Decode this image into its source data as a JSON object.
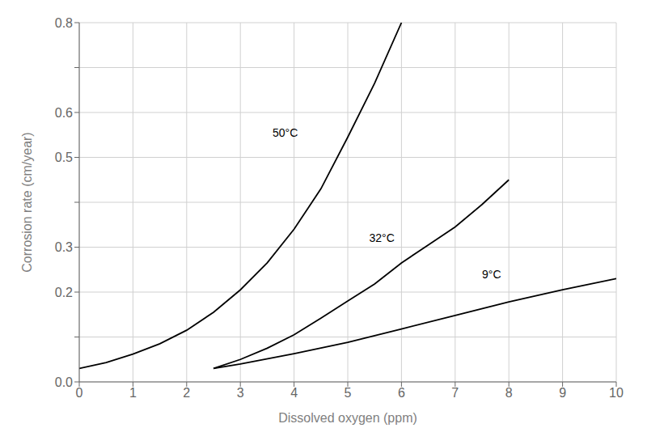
{
  "chart_data": {
    "type": "line",
    "title": "",
    "x_label": "Dissolved oxygen (ppm)",
    "y_label": "Corrosion rate (cm/year)",
    "xlim": [
      0,
      10
    ],
    "ylim": [
      0,
      0.8
    ],
    "xticks": [
      0,
      1,
      2,
      3,
      4,
      5,
      6,
      7,
      8,
      9,
      10
    ],
    "yticks": [
      {
        "value": 0,
        "label": "0.0"
      },
      {
        "value": 0.1,
        "label": ""
      },
      0.2,
      0.3,
      {
        "value": 0.4,
        "label": ""
      },
      0.5,
      0.6,
      {
        "value": 0.7,
        "label": ""
      },
      0.8
    ],
    "grid": true,
    "series": [
      {
        "color": "#000000",
        "x": [
          0,
          0.5,
          1.0,
          1.5,
          2.0,
          2.5,
          3.0,
          3.5,
          4.0,
          4.5,
          5.0,
          5.5,
          6.0
        ],
        "values": [
          0.03,
          0.043,
          0.062,
          0.085,
          0.115,
          0.155,
          0.205,
          0.265,
          0.34,
          0.43,
          0.545,
          0.665,
          0.8
        ]
      },
      {
        "color": "#000000",
        "x": [
          2.5,
          3.0,
          3.5,
          4.0,
          4.5,
          5.0,
          5.5,
          6.0,
          6.5,
          7.0,
          7.5,
          8.0
        ],
        "values": [
          0.03,
          0.05,
          0.075,
          0.105,
          0.142,
          0.18,
          0.218,
          0.265,
          0.305,
          0.345,
          0.395,
          0.45
        ]
      },
      {
        "color": "#000000",
        "x": [
          2.5,
          3.0,
          4.0,
          5.0,
          6.0,
          7.0,
          8.0,
          9.0,
          10.0
        ],
        "values": [
          0.03,
          0.04,
          0.063,
          0.088,
          0.118,
          0.148,
          0.178,
          0.205,
          0.23
        ]
      }
    ],
    "annotations": [
      {
        "text": "50°C",
        "x": 3.6,
        "y": 0.555,
        "color": "#000000"
      },
      {
        "text": "32°C",
        "x": 5.4,
        "y": 0.32,
        "color": "#000000"
      },
      {
        "text": "9°C",
        "x": 7.5,
        "y": 0.24,
        "color": "#000000"
      }
    ]
  }
}
